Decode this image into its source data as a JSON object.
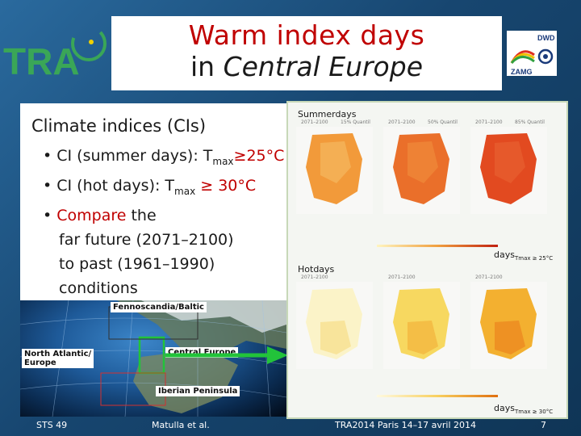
{
  "slide": {
    "title_line1": "Warm index days",
    "title_line2_prefix": "in ",
    "title_line2_italic": "Central Europe",
    "left_panel": {
      "heading": "Climate indices (CIs)",
      "bullet1_prefix": "CI (summer days): T",
      "bullet1_sub": "max",
      "bullet1_suffix": "≥25°C",
      "bullet2_prefix": "CI (hot days): T",
      "bullet2_sub": "max",
      "bullet2_suffix": " ≥ 30°C",
      "bullet3_red": "Compare",
      "bullet3_rest": " the",
      "line4": "far future (2071–2100)",
      "line5": "to past (1961–1990)",
      "line6": "conditions"
    },
    "globe_labels": {
      "fennoscandia": "Fennoscandia/Baltic",
      "north_atlantic_1": "North Atlantic/",
      "north_atlantic_2": "Europe",
      "central_europe": "Central Europe",
      "iberian": "Iberian Peninsula"
    },
    "maps": {
      "summerdays_label": "Summerdays",
      "hotdays_label": "Hotdays",
      "summer_unit_prefix": "days",
      "summer_unit_sub": "Tmax ≥ 25°C",
      "hot_unit_prefix": "days",
      "hot_unit_sub": "Tmax ≥ 30°C",
      "col1": "2071–2100",
      "col2": "15% Quantil",
      "col3": "2071–2100",
      "col4": "50% Quantil",
      "col5": "2071–2100",
      "col6": "85% Quantil"
    },
    "footer": {
      "left": "STS 49",
      "author": "Matulla et al.",
      "conference": "TRA2014  Paris 14–17 avril  2014",
      "page": "7"
    },
    "logos": {
      "tra": "TRA",
      "dwd": "DWD",
      "zamg": "ZAMG"
    },
    "colors": {
      "background": "#174670",
      "title_red": "#c00000",
      "tra_green": "#3aa657",
      "arrow_green": "#22c33a"
    }
  }
}
